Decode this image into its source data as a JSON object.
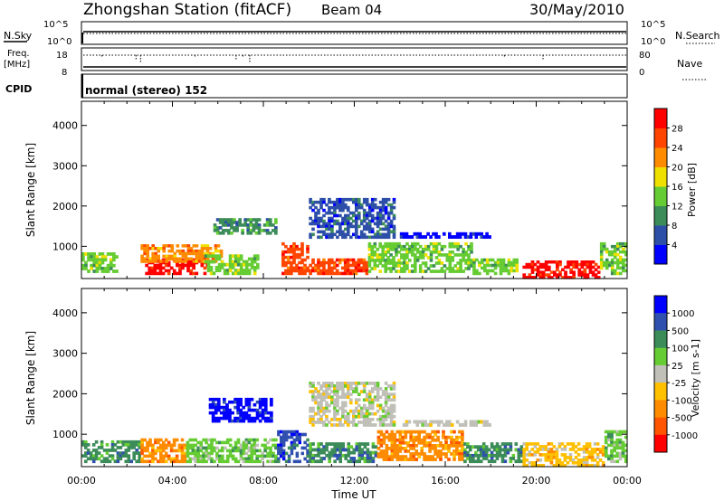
{
  "header": {
    "station_title": "Zhongshan Station (fitACF)",
    "beam": "Beam 04",
    "date": "30/May/2010"
  },
  "summary_labels": {
    "nsky": "N.Sky",
    "nsearch": "N.Search",
    "freq": "Freq.",
    "freq_unit": "[MHz]",
    "nave": "Nave",
    "cpid": "CPID",
    "cpid_value": "normal (stereo) 152"
  },
  "summary_ticks": {
    "noise_left": [
      "10^5",
      "10^0"
    ],
    "noise_right": [
      "10^5",
      "10^0"
    ],
    "freq_left": [
      "18",
      "8"
    ],
    "nave_right": [
      "80",
      "0"
    ]
  },
  "colors": {
    "power_scale": [
      "#0000ff",
      "#2d4fa8",
      "#3c8c5a",
      "#66cc33",
      "#f0e000",
      "#ff8c00",
      "#ff4500",
      "#ff0000"
    ],
    "velocity_scale": [
      "#0000ff",
      "#3050b0",
      "#3c8c5a",
      "#66cc33",
      "#c0c0b8",
      "#ffc000",
      "#ff8c00",
      "#ff5500",
      "#ff0000"
    ]
  },
  "chart_data": [
    {
      "type": "heatmap",
      "panel": "power",
      "ylabel": "Slant Range [km]",
      "yticks": [
        "1000",
        "2000",
        "3000",
        "4000"
      ],
      "ylim": [
        200,
        4600
      ],
      "xlim": [
        0,
        24
      ],
      "colorbar_label": "Power [dB]",
      "colorbar_ticks": [
        "4",
        "8",
        "12",
        "16",
        "20",
        "24",
        "28"
      ],
      "clim": [
        0,
        30
      ],
      "blobs": [
        {
          "t": [
            0.0,
            1.6
          ],
          "r": [
            350,
            850
          ],
          "level": 3
        },
        {
          "t": [
            2.8,
            5.6
          ],
          "r": [
            300,
            700
          ],
          "level": 7
        },
        {
          "t": [
            2.6,
            6.2
          ],
          "r": [
            600,
            1050
          ],
          "level": 5
        },
        {
          "t": [
            5.4,
            7.8
          ],
          "r": [
            300,
            800
          ],
          "level": 3
        },
        {
          "t": [
            5.8,
            8.6
          ],
          "r": [
            1300,
            1700
          ],
          "level": 2
        },
        {
          "t": [
            8.8,
            10.0
          ],
          "r": [
            300,
            1100
          ],
          "level": 6
        },
        {
          "t": [
            10.0,
            13.8
          ],
          "r": [
            1200,
            2200
          ],
          "level": 1
        },
        {
          "t": [
            10.0,
            12.6
          ],
          "r": [
            300,
            700
          ],
          "level": 6
        },
        {
          "t": [
            12.6,
            17.2
          ],
          "r": [
            350,
            1100
          ],
          "level": 3
        },
        {
          "t": [
            14.0,
            18.0
          ],
          "r": [
            1200,
            1350
          ],
          "level": 0
        },
        {
          "t": [
            17.2,
            19.2
          ],
          "r": [
            300,
            700
          ],
          "level": 3
        },
        {
          "t": [
            19.4,
            22.8
          ],
          "r": [
            200,
            650
          ],
          "level": 7
        },
        {
          "t": [
            22.8,
            24.0
          ],
          "r": [
            300,
            1100
          ],
          "level": 3
        }
      ]
    },
    {
      "type": "heatmap",
      "panel": "velocity",
      "xlabel": "Time UT",
      "ylabel": "Slant Range [km]",
      "xticks": [
        "00:00",
        "04:00",
        "08:00",
        "12:00",
        "16:00",
        "20:00",
        "00:00"
      ],
      "yticks": [
        "1000",
        "2000",
        "3000",
        "4000"
      ],
      "ylim": [
        200,
        4600
      ],
      "xlim": [
        0,
        24
      ],
      "colorbar_label": "Velocity [m s-1]",
      "colorbar_ticks": [
        "1000",
        "500",
        "100",
        "25",
        "-25",
        "-100",
        "-500",
        "-1000"
      ],
      "blobs": [
        {
          "t": [
            0.0,
            2.6
          ],
          "r": [
            300,
            850
          ],
          "level": 2
        },
        {
          "t": [
            2.6,
            4.6
          ],
          "r": [
            300,
            900
          ],
          "level": 6
        },
        {
          "t": [
            4.6,
            8.6
          ],
          "r": [
            300,
            900
          ],
          "level": 3
        },
        {
          "t": [
            5.6,
            8.4
          ],
          "r": [
            1300,
            1900
          ],
          "level": 0
        },
        {
          "t": [
            8.6,
            10.0
          ],
          "r": [
            300,
            1100
          ],
          "level": 1
        },
        {
          "t": [
            10.0,
            13.8
          ],
          "r": [
            1200,
            2300
          ],
          "level": 4
        },
        {
          "t": [
            10.0,
            13.0
          ],
          "r": [
            300,
            800
          ],
          "level": 2
        },
        {
          "t": [
            13.0,
            16.8
          ],
          "r": [
            350,
            1100
          ],
          "level": 6
        },
        {
          "t": [
            14.0,
            18.0
          ],
          "r": [
            1200,
            1350
          ],
          "level": 4
        },
        {
          "t": [
            16.8,
            19.4
          ],
          "r": [
            300,
            800
          ],
          "level": 2
        },
        {
          "t": [
            19.4,
            23.0
          ],
          "r": [
            200,
            800
          ],
          "level": 5
        },
        {
          "t": [
            23.0,
            24.0
          ],
          "r": [
            300,
            1100
          ],
          "level": 3
        }
      ]
    }
  ]
}
